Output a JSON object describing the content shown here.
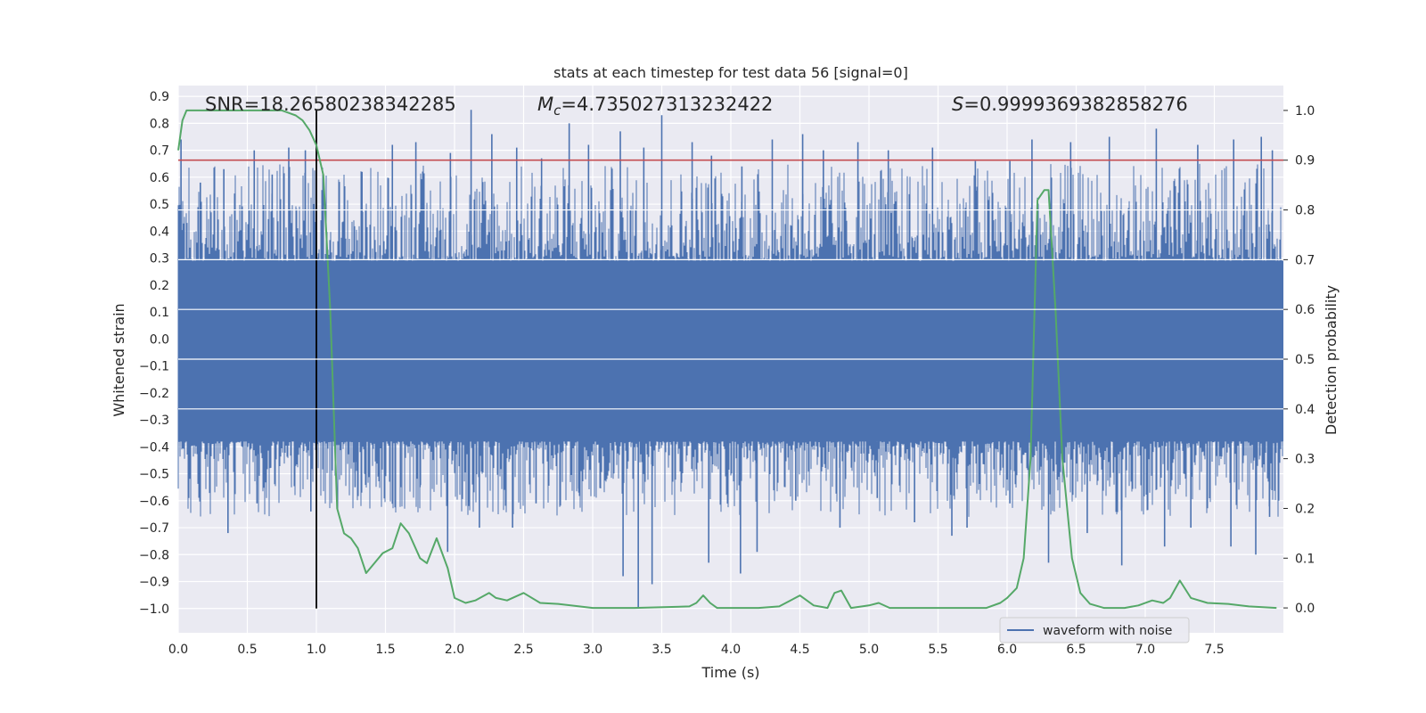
{
  "chart_data": {
    "type": "line",
    "title": "stats at each timestep for test data 56 [signal=0]",
    "xlabel": "Time (s)",
    "ylabel": "Whitened strain",
    "y2label": "Detection probability",
    "xlim": [
      0,
      8
    ],
    "ylim": [
      -1.09,
      0.94
    ],
    "y2lim": [
      -0.05,
      1.05
    ],
    "xticks": [
      "0.0",
      "0.5",
      "1.0",
      "1.5",
      "2.0",
      "2.5",
      "3.0",
      "3.5",
      "4.0",
      "4.5",
      "5.0",
      "5.5",
      "6.0",
      "6.5",
      "7.0",
      "7.5"
    ],
    "yticks": [
      "0.9",
      "0.8",
      "0.7",
      "0.6",
      "0.5",
      "0.4",
      "0.3",
      "0.2",
      "0.1",
      "0.0",
      "−0.1",
      "−0.2",
      "−0.3",
      "−0.4",
      "−0.5",
      "−0.6",
      "−0.7",
      "−0.8",
      "−0.9",
      "−1.0"
    ],
    "y2ticks": [
      "0.0",
      "0.1",
      "0.2",
      "0.3",
      "0.4",
      "0.5",
      "0.6",
      "0.7",
      "0.8",
      "0.9",
      "1.0"
    ],
    "grid": true,
    "legend": {
      "placement": "lower-right",
      "entries": [
        "waveform with noise"
      ]
    },
    "annotations": {
      "snr": "SNR=18.26580238342285",
      "mc_symbol": "M",
      "mc_sub": "c",
      "mc_value": "=4.735027313232422",
      "s_symbol": "S",
      "s_value": "=0.9999369382858276"
    },
    "threshold": 0.9,
    "marker_time": 1.0,
    "marker_range": [
      -1.0,
      0.85
    ],
    "series": [
      {
        "name": "waveform with noise",
        "axis": "left",
        "color": "#4c72b0",
        "band_min": -0.38,
        "band_max": 0.29,
        "spikes": [
          [
            0.02,
            0.74
          ],
          [
            0.16,
            0.58
          ],
          [
            0.33,
            0.63
          ],
          [
            0.55,
            0.7
          ],
          [
            0.68,
            0.61
          ],
          [
            0.8,
            0.71
          ],
          [
            0.92,
            0.7
          ],
          [
            1.05,
            0.6
          ],
          [
            1.33,
            0.62
          ],
          [
            1.55,
            0.72
          ],
          [
            1.72,
            0.73
          ],
          [
            1.97,
            0.69
          ],
          [
            2.12,
            0.85
          ],
          [
            2.27,
            0.76
          ],
          [
            2.45,
            0.71
          ],
          [
            2.63,
            0.67
          ],
          [
            2.83,
            0.8
          ],
          [
            2.97,
            0.72
          ],
          [
            3.2,
            0.77
          ],
          [
            3.37,
            0.71
          ],
          [
            3.5,
            0.83
          ],
          [
            3.72,
            0.73
          ],
          [
            3.86,
            0.68
          ],
          [
            4.08,
            0.64
          ],
          [
            4.3,
            0.74
          ],
          [
            4.52,
            0.76
          ],
          [
            4.67,
            0.7
          ],
          [
            4.92,
            0.73
          ],
          [
            5.14,
            0.7
          ],
          [
            5.46,
            0.71
          ],
          [
            5.77,
            0.66
          ],
          [
            6.02,
            0.66
          ],
          [
            6.18,
            0.74
          ],
          [
            6.46,
            0.73
          ],
          [
            6.74,
            0.75
          ],
          [
            7.08,
            0.78
          ],
          [
            7.38,
            0.72
          ],
          [
            7.64,
            0.74
          ],
          [
            7.84,
            0.75
          ],
          [
            7.92,
            0.7
          ],
          [
            0.36,
            -0.72
          ],
          [
            0.57,
            -0.61
          ],
          [
            0.96,
            -0.64
          ],
          [
            1.28,
            -0.55
          ],
          [
            1.61,
            -0.55
          ],
          [
            1.75,
            -0.55
          ],
          [
            1.95,
            -0.79
          ],
          [
            2.18,
            -0.7
          ],
          [
            2.42,
            -0.7
          ],
          [
            2.59,
            -0.61
          ],
          [
            2.9,
            -0.57
          ],
          [
            3.22,
            -0.88
          ],
          [
            3.33,
            -1.0
          ],
          [
            3.43,
            -0.91
          ],
          [
            3.84,
            -0.83
          ],
          [
            4.07,
            -0.87
          ],
          [
            4.19,
            -0.79
          ],
          [
            4.47,
            -0.6
          ],
          [
            4.79,
            -0.7
          ],
          [
            5.06,
            -0.59
          ],
          [
            5.33,
            -0.68
          ],
          [
            5.6,
            -0.73
          ],
          [
            5.71,
            -0.7
          ],
          [
            6.02,
            -0.61
          ],
          [
            6.3,
            -0.83
          ],
          [
            6.58,
            -0.72
          ],
          [
            6.83,
            -0.84
          ],
          [
            7.14,
            -0.77
          ],
          [
            7.33,
            -0.7
          ],
          [
            7.62,
            -0.77
          ],
          [
            7.8,
            -0.8
          ],
          [
            7.9,
            -0.66
          ]
        ]
      },
      {
        "name": "",
        "axis": "right",
        "color": "#55a868",
        "x": [
          0.0,
          0.03,
          0.06,
          0.1,
          0.15,
          0.25,
          0.5,
          0.75,
          0.85,
          0.9,
          0.95,
          1.0,
          1.05,
          1.1,
          1.15,
          1.2,
          1.25,
          1.3,
          1.36,
          1.42,
          1.48,
          1.55,
          1.61,
          1.67,
          1.75,
          1.8,
          1.87,
          1.95,
          2.0,
          2.08,
          2.15,
          2.25,
          2.3,
          2.38,
          2.5,
          2.62,
          2.75,
          3.0,
          3.3,
          3.7,
          3.75,
          3.8,
          3.85,
          3.9,
          4.05,
          4.2,
          4.35,
          4.5,
          4.6,
          4.7,
          4.75,
          4.8,
          4.87,
          4.95,
          5.0,
          5.07,
          5.15,
          5.3,
          5.5,
          5.7,
          5.85,
          5.95,
          6.0,
          6.07,
          6.12,
          6.17,
          6.22,
          6.27,
          6.3,
          6.35,
          6.4,
          6.47,
          6.53,
          6.6,
          6.7,
          6.85,
          6.95,
          7.05,
          7.13,
          7.18,
          7.25,
          7.33,
          7.45,
          7.6,
          7.75,
          7.95
        ],
        "y": [
          0.92,
          0.98,
          1.0,
          1.0,
          1.0,
          1.0,
          1.0,
          1.0,
          0.99,
          0.98,
          0.96,
          0.93,
          0.87,
          0.6,
          0.2,
          0.15,
          0.14,
          0.12,
          0.07,
          0.09,
          0.11,
          0.12,
          0.17,
          0.15,
          0.1,
          0.09,
          0.14,
          0.08,
          0.02,
          0.01,
          0.015,
          0.03,
          0.02,
          0.015,
          0.03,
          0.01,
          0.008,
          0.0,
          0.0,
          0.003,
          0.01,
          0.025,
          0.01,
          0.0,
          0.0,
          0.0,
          0.003,
          0.025,
          0.005,
          0.0,
          0.03,
          0.035,
          0.0,
          0.003,
          0.005,
          0.01,
          0.0,
          0.0,
          0.0,
          0.0,
          0.0,
          0.01,
          0.02,
          0.04,
          0.1,
          0.3,
          0.82,
          0.84,
          0.84,
          0.6,
          0.3,
          0.1,
          0.03,
          0.008,
          0.0,
          0.0,
          0.005,
          0.015,
          0.01,
          0.02,
          0.055,
          0.02,
          0.01,
          0.008,
          0.003,
          0.0
        ]
      }
    ]
  }
}
